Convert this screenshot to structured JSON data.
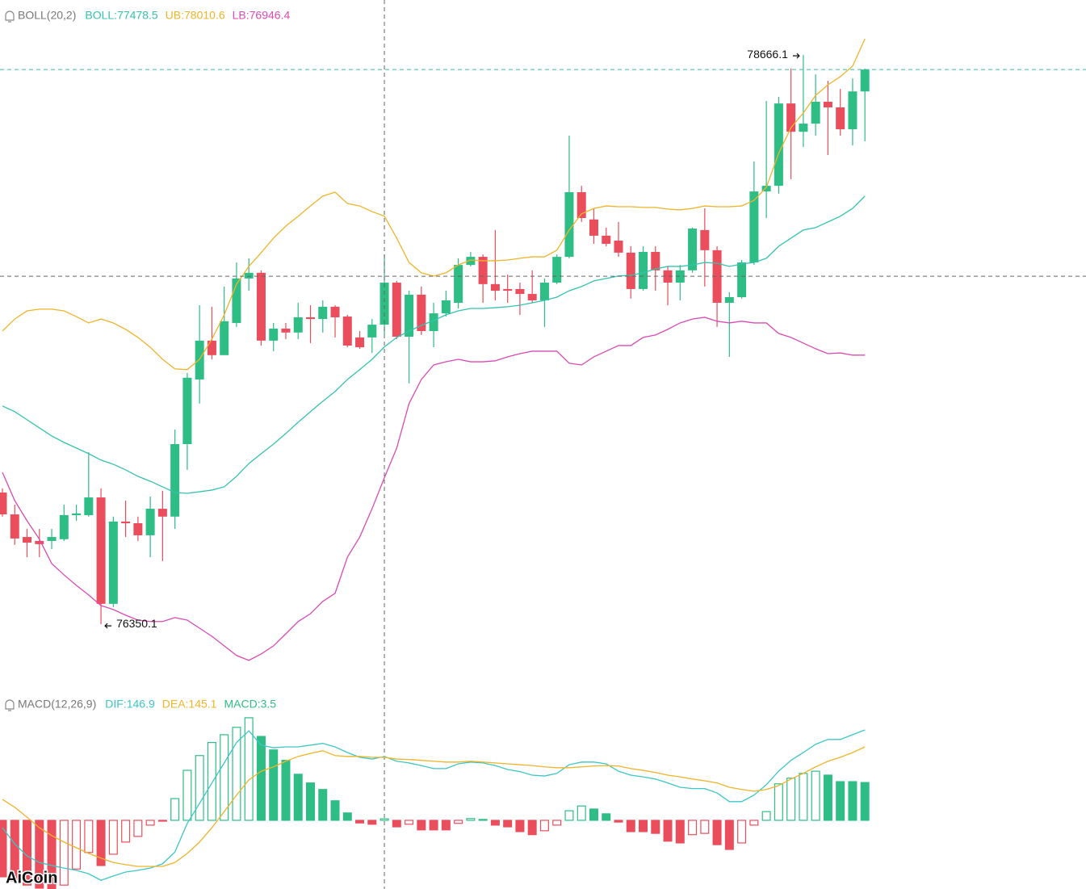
{
  "chart_data": [
    {
      "type": "candlestick",
      "legend_title": "BOLL(20,2)",
      "up_color": "#2ebd85",
      "down_color": "#ea4d5c",
      "ylim": [
        76058,
        78890
      ],
      "crosshair_index": 31,
      "crosshair_value": 77766,
      "last_price_color": "#3cb9a0",
      "open": [
        76886,
        76797,
        76705,
        76689,
        76689,
        76696,
        76794,
        76794,
        76866,
        76433,
        76768,
        76761,
        76712,
        76820,
        76788,
        77083,
        77346,
        77504,
        77445,
        77576,
        77757,
        77780,
        77504,
        77553,
        77537,
        77599,
        77592,
        77642,
        77602,
        77517,
        77517,
        77569,
        77740,
        77520,
        77691,
        77543,
        77615,
        77658,
        77812,
        77845,
        77734,
        77714,
        77714,
        77694,
        77668,
        77740,
        77845,
        78108,
        77997,
        77931,
        77911,
        77862,
        77714,
        77865,
        77790,
        77740,
        77790,
        77954,
        77872,
        77658,
        77681,
        77822,
        78111,
        78134,
        78469,
        78354,
        78387,
        78476,
        78453,
        78364,
        78518
      ],
      "high": [
        76903,
        76837,
        76738,
        76738,
        76738,
        76837,
        76837,
        77050,
        76903,
        76788,
        76853,
        76788,
        76870,
        76893,
        77142,
        77372,
        77648,
        77642,
        77724,
        77822,
        77839,
        77790,
        77576,
        77576,
        77658,
        77648,
        77668,
        77648,
        77609,
        77543,
        77592,
        77855,
        77747,
        77707,
        77724,
        77658,
        77707,
        77839,
        77865,
        77855,
        77954,
        77773,
        77740,
        77790,
        77757,
        77855,
        78338,
        78134,
        78042,
        77964,
        77987,
        77888,
        77888,
        77888,
        77806,
        77812,
        77964,
        78042,
        77888,
        77701,
        77832,
        78233,
        78479,
        78496,
        78611,
        78666.1,
        78587,
        78561,
        78528,
        78571,
        78611
      ],
      "low": [
        76788,
        76673,
        76623,
        76623,
        76656,
        76689,
        76771,
        76788,
        76350.1,
        76420,
        76705,
        76689,
        76623,
        76607,
        76738,
        76978,
        77248,
        77428,
        77445,
        77560,
        77707,
        77484,
        77461,
        77510,
        77510,
        77494,
        77537,
        77517,
        77477,
        77471,
        77454,
        77527,
        77510,
        77330,
        77527,
        77477,
        77602,
        77635,
        77806,
        77658,
        77668,
        77658,
        77609,
        77658,
        77560,
        77734,
        77839,
        77987,
        77898,
        77888,
        77845,
        77675,
        77707,
        77707,
        77648,
        77668,
        77780,
        77724,
        77560,
        77438,
        77675,
        77812,
        78003,
        78102,
        78161,
        78292,
        78338,
        78259,
        78338,
        78298,
        78315
      ],
      "close": [
        76797,
        76699,
        76682,
        76676,
        76705,
        76794,
        76801,
        76866,
        76433,
        76768,
        76761,
        76712,
        76820,
        76788,
        77083,
        77353,
        77504,
        77445,
        77583,
        77757,
        77780,
        77504,
        77553,
        77537,
        77599,
        77592,
        77642,
        77599,
        77484,
        77477,
        77569,
        77740,
        77520,
        77691,
        77543,
        77615,
        77668,
        77812,
        77845,
        77734,
        77707,
        77707,
        77694,
        77668,
        77740,
        77845,
        78108,
        78003,
        77931,
        77898,
        77862,
        77714,
        77865,
        77790,
        77740,
        77790,
        77960,
        77872,
        77658,
        77681,
        77822,
        78111,
        78134,
        78469,
        78354,
        78387,
        78476,
        78453,
        78364,
        78518,
        78607
      ],
      "series": [
        {
          "name": "BOLL:77478.5",
          "color": "#35c2ae",
          "values": [
            77238,
            77215,
            77182,
            77149,
            77116,
            77090,
            77067,
            77044,
            77018,
            77001,
            76978,
            76952,
            76932,
            76909,
            76886,
            76883,
            76889,
            76896,
            76909,
            76952,
            77004,
            77044,
            77083,
            77126,
            77172,
            77215,
            77257,
            77297,
            77346,
            77386,
            77428,
            77478.5,
            77517,
            77543,
            77566,
            77586,
            77609,
            77625,
            77635,
            77635,
            77638,
            77642,
            77648,
            77658,
            77668,
            77681,
            77707,
            77724,
            77747,
            77757,
            77767,
            77770,
            77780,
            77796,
            77806,
            77806,
            77812,
            77822,
            77819,
            77806,
            77816,
            77822,
            77839,
            77888,
            77921,
            77954,
            77964,
            77987,
            78010,
            78042,
            78092
          ]
        },
        {
          "name": "UB:78010.6",
          "color": "#eeb42a",
          "values": [
            77543,
            77592,
            77625,
            77632,
            77632,
            77625,
            77602,
            77576,
            77592,
            77576,
            77550,
            77517,
            77477,
            77428,
            77389,
            77386,
            77428,
            77510,
            77609,
            77734,
            77806,
            77862,
            77921,
            77970,
            78010,
            78052,
            78092,
            78108,
            78062,
            78052,
            78029,
            78010.6,
            77921,
            77822,
            77780,
            77767,
            77780,
            77812,
            77832,
            77829,
            77829,
            77832,
            77839,
            77845,
            77845,
            77872,
            77954,
            78020,
            78042,
            78052,
            78049,
            78049,
            78046,
            78046,
            78039,
            78036,
            78042,
            78052,
            78049,
            78049,
            78052,
            78075,
            78128,
            78266,
            78371,
            78430,
            78502,
            78545,
            78578,
            78621,
            78732
          ]
        },
        {
          "name": "LB:76946.4",
          "color": "#d94bb4",
          "values": [
            76968,
            76853,
            76771,
            76696,
            76597,
            76551,
            76508,
            76469,
            76426,
            76410,
            76387,
            76367,
            76361,
            76361,
            76377,
            76367,
            76334,
            76301,
            76262,
            76223,
            76203,
            76229,
            76262,
            76311,
            76361,
            76393,
            76443,
            76476,
            76623,
            76705,
            76820,
            76946.4,
            77067,
            77248,
            77346,
            77405,
            77418,
            77428,
            77418,
            77418,
            77422,
            77438,
            77451,
            77461,
            77461,
            77461,
            77412,
            77405,
            77438,
            77461,
            77484,
            77484,
            77517,
            77527,
            77550,
            77576,
            77592,
            77599,
            77583,
            77576,
            77583,
            77576,
            77576,
            77533,
            77517,
            77494,
            77471,
            77451,
            77454,
            77445,
            77445
          ]
        }
      ]
    },
    {
      "type": "macd",
      "legend_title": "MACD(12,26,9)",
      "ylim": [
        -158,
        286
      ],
      "up_color": "#2ebd85",
      "down_color": "#ea4d5c",
      "series": [
        {
          "name": "DIF:146.9",
          "color": "#3cc6c4",
          "values": [
            -17,
            -54,
            -82,
            -97,
            -104,
            -110,
            -115,
            -123,
            -138,
            -128,
            -119,
            -115,
            -110,
            -100,
            -73,
            -7,
            39,
            86,
            132,
            179,
            206,
            173,
            167,
            169,
            169,
            173,
            177,
            169,
            156,
            145,
            141,
            146.9,
            136,
            132,
            126,
            119,
            119,
            130,
            134,
            132,
            126,
            117,
            112,
            104,
            102,
            108,
            128,
            134,
            134,
            130,
            113,
            104,
            100,
            95,
            86,
            76,
            73,
            73,
            63,
            43,
            43,
            58,
            82,
            113,
            138,
            156,
            175,
            186,
            186,
            197,
            208
          ]
        },
        {
          "name": "DEA:145.1",
          "color": "#eeb42a",
          "values": [
            48,
            30,
            7,
            -17,
            -35,
            -50,
            -63,
            -76,
            -87,
            -97,
            -102,
            -106,
            -106,
            -106,
            -97,
            -76,
            -50,
            -17,
            20,
            58,
            93,
            113,
            123,
            136,
            147,
            154,
            160,
            149,
            147,
            147,
            145,
            145.1,
            141,
            140,
            138,
            136,
            134,
            134,
            136,
            134,
            132,
            130,
            128,
            126,
            123,
            121,
            121,
            123,
            125,
            126,
            125,
            119,
            115,
            110,
            104,
            100,
            95,
            91,
            86,
            76,
            71,
            67,
            71,
            80,
            95,
            108,
            123,
            136,
            145,
            156,
            169
          ]
        },
        {
          "name": "MACD:3.5",
          "color": "#2ebd85",
          "kind": "bar",
          "values": [
            -130,
            -140,
            -149,
            -156,
            -160,
            -149,
            -112,
            -74,
            -104,
            -78,
            -50,
            -37,
            -11,
            -2,
            50,
            115,
            149,
            179,
            197,
            214,
            236,
            193,
            162,
            138,
            106,
            86,
            71,
            45,
            17,
            -6,
            -9,
            3.5,
            -15,
            -9,
            -22,
            -22,
            -22,
            -7,
            4,
            2,
            -11,
            -15,
            -26,
            -33,
            -24,
            -11,
            22,
            33,
            26,
            15,
            -4,
            -26,
            -26,
            -30,
            -48,
            -52,
            -33,
            -30,
            -56,
            -67,
            -52,
            -11,
            20,
            84,
            97,
            108,
            113,
            104,
            89,
            89,
            87
          ]
        }
      ]
    }
  ],
  "watermark": "AiCoin"
}
